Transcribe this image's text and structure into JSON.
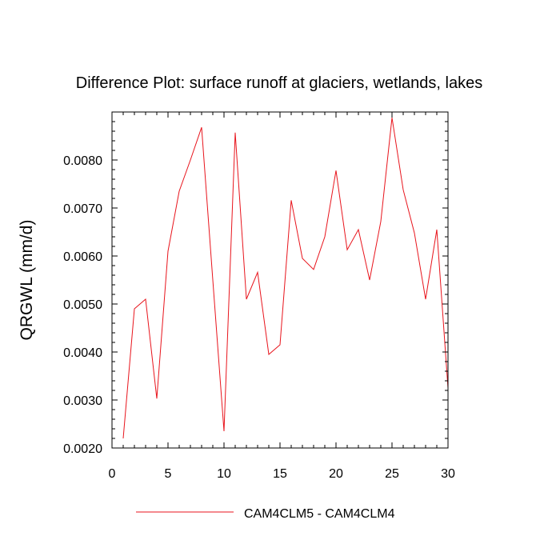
{
  "chart_data": {
    "type": "line",
    "title": "Difference Plot: surface runoff at glaciers, wetlands, lakes",
    "xlabel": "",
    "ylabel": "QRGWL  (mm/d)",
    "xlim": [
      0,
      30
    ],
    "ylim": [
      0.002,
      0.009
    ],
    "x_ticks": [
      0,
      5,
      10,
      15,
      20,
      25,
      30
    ],
    "y_ticks": [
      0.002,
      0.003,
      0.004,
      0.005,
      0.006,
      0.007,
      0.008
    ],
    "y_tick_labels": [
      "0.0020",
      "0.0030",
      "0.0040",
      "0.0050",
      "0.0060",
      "0.0070",
      "0.0080"
    ],
    "grid": false,
    "legend_position": "bottom",
    "series": [
      {
        "name": "CAM4CLM5 - CAM4CLM4",
        "color": "#e8141c",
        "x": [
          1,
          2,
          3,
          4,
          5,
          6,
          7,
          8,
          9,
          10,
          11,
          12,
          13,
          14,
          15,
          16,
          17,
          18,
          19,
          20,
          21,
          22,
          23,
          24,
          25,
          26,
          27,
          28,
          29,
          30
        ],
        "y": [
          0.0022,
          0.0049,
          0.0051,
          0.00303,
          0.0061,
          0.00735,
          0.008,
          0.00868,
          0.0055,
          0.00235,
          0.00857,
          0.0051,
          0.00566,
          0.00395,
          0.00415,
          0.00716,
          0.00595,
          0.00572,
          0.0064,
          0.00778,
          0.00613,
          0.00655,
          0.0055,
          0.00672,
          0.00888,
          0.00738,
          0.00648,
          0.0051,
          0.00655,
          0.00325
        ]
      }
    ]
  }
}
